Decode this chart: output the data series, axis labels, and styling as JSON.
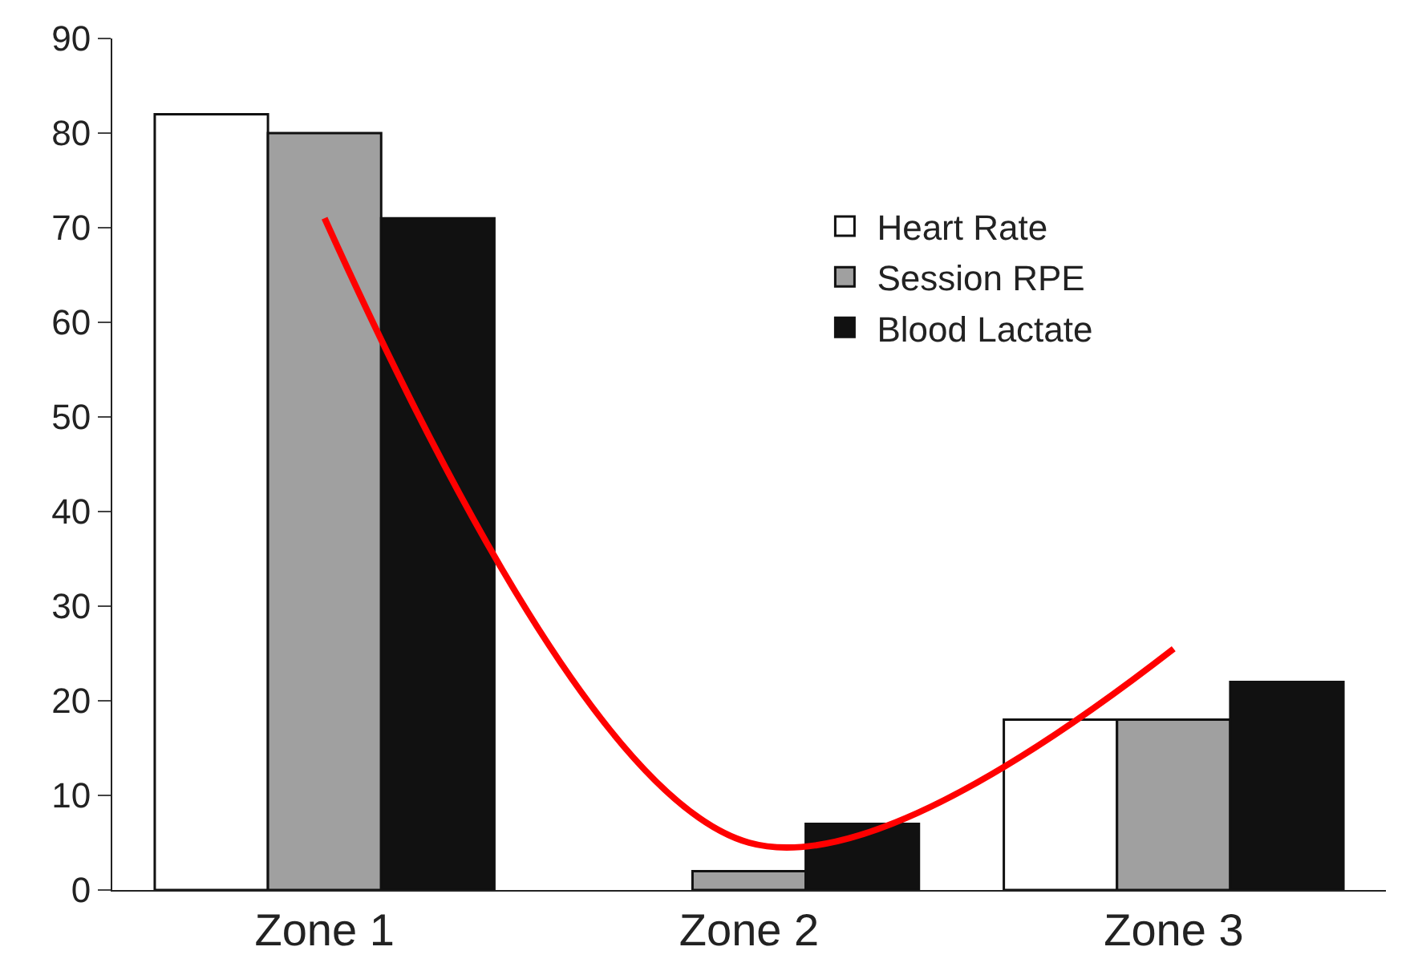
{
  "chart_data": {
    "type": "bar",
    "categories": [
      "Zone 1",
      "Zone 2",
      "Zone 3"
    ],
    "series": [
      {
        "name": "Heart Rate",
        "color": "#ffffff",
        "values": [
          82,
          null,
          18
        ]
      },
      {
        "name": "Session RPE",
        "color": "#a0a0a0",
        "values": [
          80,
          2,
          18
        ]
      },
      {
        "name": "Blood Lactate",
        "color": "#111111",
        "values": [
          71,
          7,
          22
        ]
      },
      {
        "type": "line",
        "color": "#ff0000",
        "values": [
          71,
          5,
          25.5
        ]
      }
    ],
    "ylim": [
      0,
      90
    ],
    "yticks": [
      0,
      10,
      20,
      30,
      40,
      50,
      60,
      70,
      80,
      90
    ],
    "legend": "right"
  }
}
